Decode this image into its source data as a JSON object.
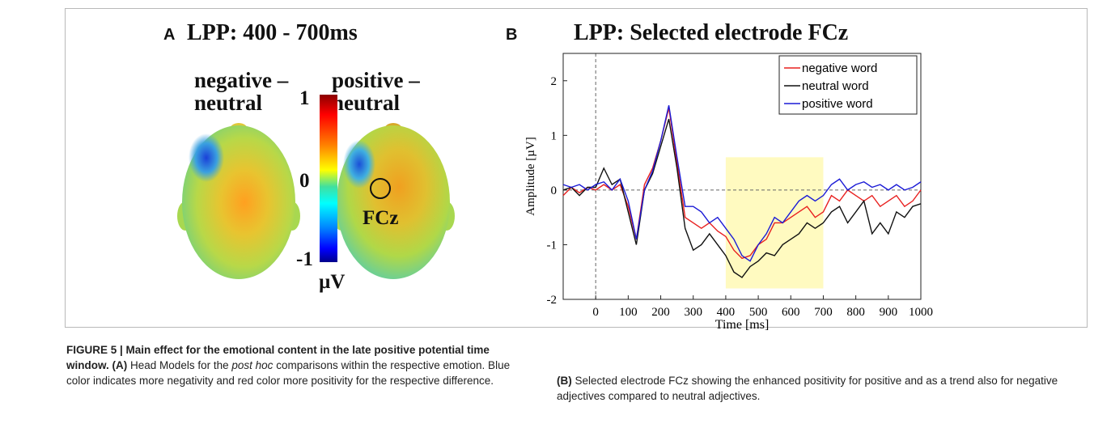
{
  "panel_a": {
    "letter": "A",
    "title": "LPP: 400 - 700ms",
    "head_left_label_1": "negative –",
    "head_left_label_2": "neutral",
    "head_right_label_1": "positive –",
    "head_right_label_2": "neutral",
    "electrode_label": "FCz",
    "colorbar": {
      "max": "1",
      "mid": "0",
      "min": "-1",
      "unit": "µV"
    }
  },
  "panel_b": {
    "letter": "B",
    "title": "LPP: Selected electrode FCz"
  },
  "chart_data": {
    "type": "line",
    "title": "LPP: Selected electrode FCz",
    "xlabel": "Time [ms]",
    "ylabel": "Amplitude [µV]",
    "xlim": [
      -100,
      1000
    ],
    "ylim": [
      -2,
      2.5
    ],
    "xticks": [
      "0",
      "100",
      "200",
      "300",
      "400",
      "500",
      "600",
      "700",
      "800",
      "900",
      "1000"
    ],
    "yticks": [
      "-2",
      "-1",
      "0",
      "1",
      "2"
    ],
    "highlight_window": [
      400,
      700
    ],
    "legend": [
      "negative word",
      "neutral word",
      "positive word"
    ],
    "legend_position": "top-right",
    "colors": {
      "negative": "#e8201f",
      "neutral": "#111111",
      "positive": "#1b1bd6",
      "highlight": "#fffac0"
    },
    "x": [
      -100,
      -75,
      -50,
      -25,
      0,
      25,
      50,
      75,
      100,
      125,
      150,
      175,
      200,
      225,
      250,
      275,
      300,
      325,
      350,
      375,
      400,
      425,
      450,
      475,
      500,
      525,
      550,
      575,
      600,
      625,
      650,
      675,
      700,
      725,
      750,
      775,
      800,
      825,
      850,
      875,
      900,
      925,
      950,
      975,
      1000
    ],
    "series": [
      {
        "name": "negative word",
        "values": [
          -0.1,
          0.05,
          -0.05,
          0.05,
          0.0,
          0.1,
          0.0,
          0.1,
          -0.3,
          -0.9,
          0.1,
          0.4,
          0.9,
          1.5,
          0.5,
          -0.5,
          -0.6,
          -0.7,
          -0.6,
          -0.75,
          -0.85,
          -1.1,
          -1.25,
          -1.2,
          -1.0,
          -0.9,
          -0.6,
          -0.6,
          -0.5,
          -0.4,
          -0.3,
          -0.5,
          -0.4,
          -0.1,
          -0.2,
          0.0,
          -0.1,
          -0.2,
          -0.1,
          -0.3,
          -0.2,
          -0.1,
          -0.3,
          -0.2,
          0.0
        ]
      },
      {
        "name": "neutral word",
        "values": [
          0.0,
          0.05,
          -0.1,
          0.05,
          0.05,
          0.4,
          0.1,
          0.2,
          -0.4,
          -1.0,
          0.0,
          0.3,
          0.8,
          1.3,
          0.4,
          -0.7,
          -1.1,
          -1.0,
          -0.8,
          -1.0,
          -1.2,
          -1.5,
          -1.6,
          -1.4,
          -1.3,
          -1.15,
          -1.2,
          -1.0,
          -0.9,
          -0.8,
          -0.6,
          -0.7,
          -0.6,
          -0.4,
          -0.3,
          -0.6,
          -0.4,
          -0.2,
          -0.8,
          -0.6,
          -0.8,
          -0.4,
          -0.5,
          -0.3,
          -0.25
        ]
      },
      {
        "name": "positive word",
        "values": [
          0.1,
          0.05,
          0.1,
          0.0,
          0.1,
          0.15,
          0.0,
          0.2,
          -0.2,
          -0.9,
          0.0,
          0.35,
          0.9,
          1.55,
          0.6,
          -0.3,
          -0.3,
          -0.4,
          -0.6,
          -0.5,
          -0.7,
          -0.9,
          -1.2,
          -1.3,
          -1.0,
          -0.8,
          -0.5,
          -0.6,
          -0.4,
          -0.2,
          -0.1,
          -0.2,
          -0.1,
          0.1,
          0.2,
          0.0,
          0.1,
          0.15,
          0.05,
          0.1,
          0.0,
          0.1,
          0.0,
          0.05,
          0.15
        ]
      }
    ]
  },
  "caption": {
    "heading": "FIGURE 5 | Main effect for the emotional content in the late positive potential time window.",
    "label_a": "(A)",
    "text_a_1": "Head Models for the",
    "text_a_italic": "post hoc",
    "text_a_2": "comparisons within the respective emotion. Blue color indicates more negativity and red color more positivity for the respective difference.",
    "label_b": "(B)",
    "text_b": "Selected electrode FCz showing the enhanced positivity for positive and as a trend also for negative adjectives compared to neutral adjectives."
  }
}
